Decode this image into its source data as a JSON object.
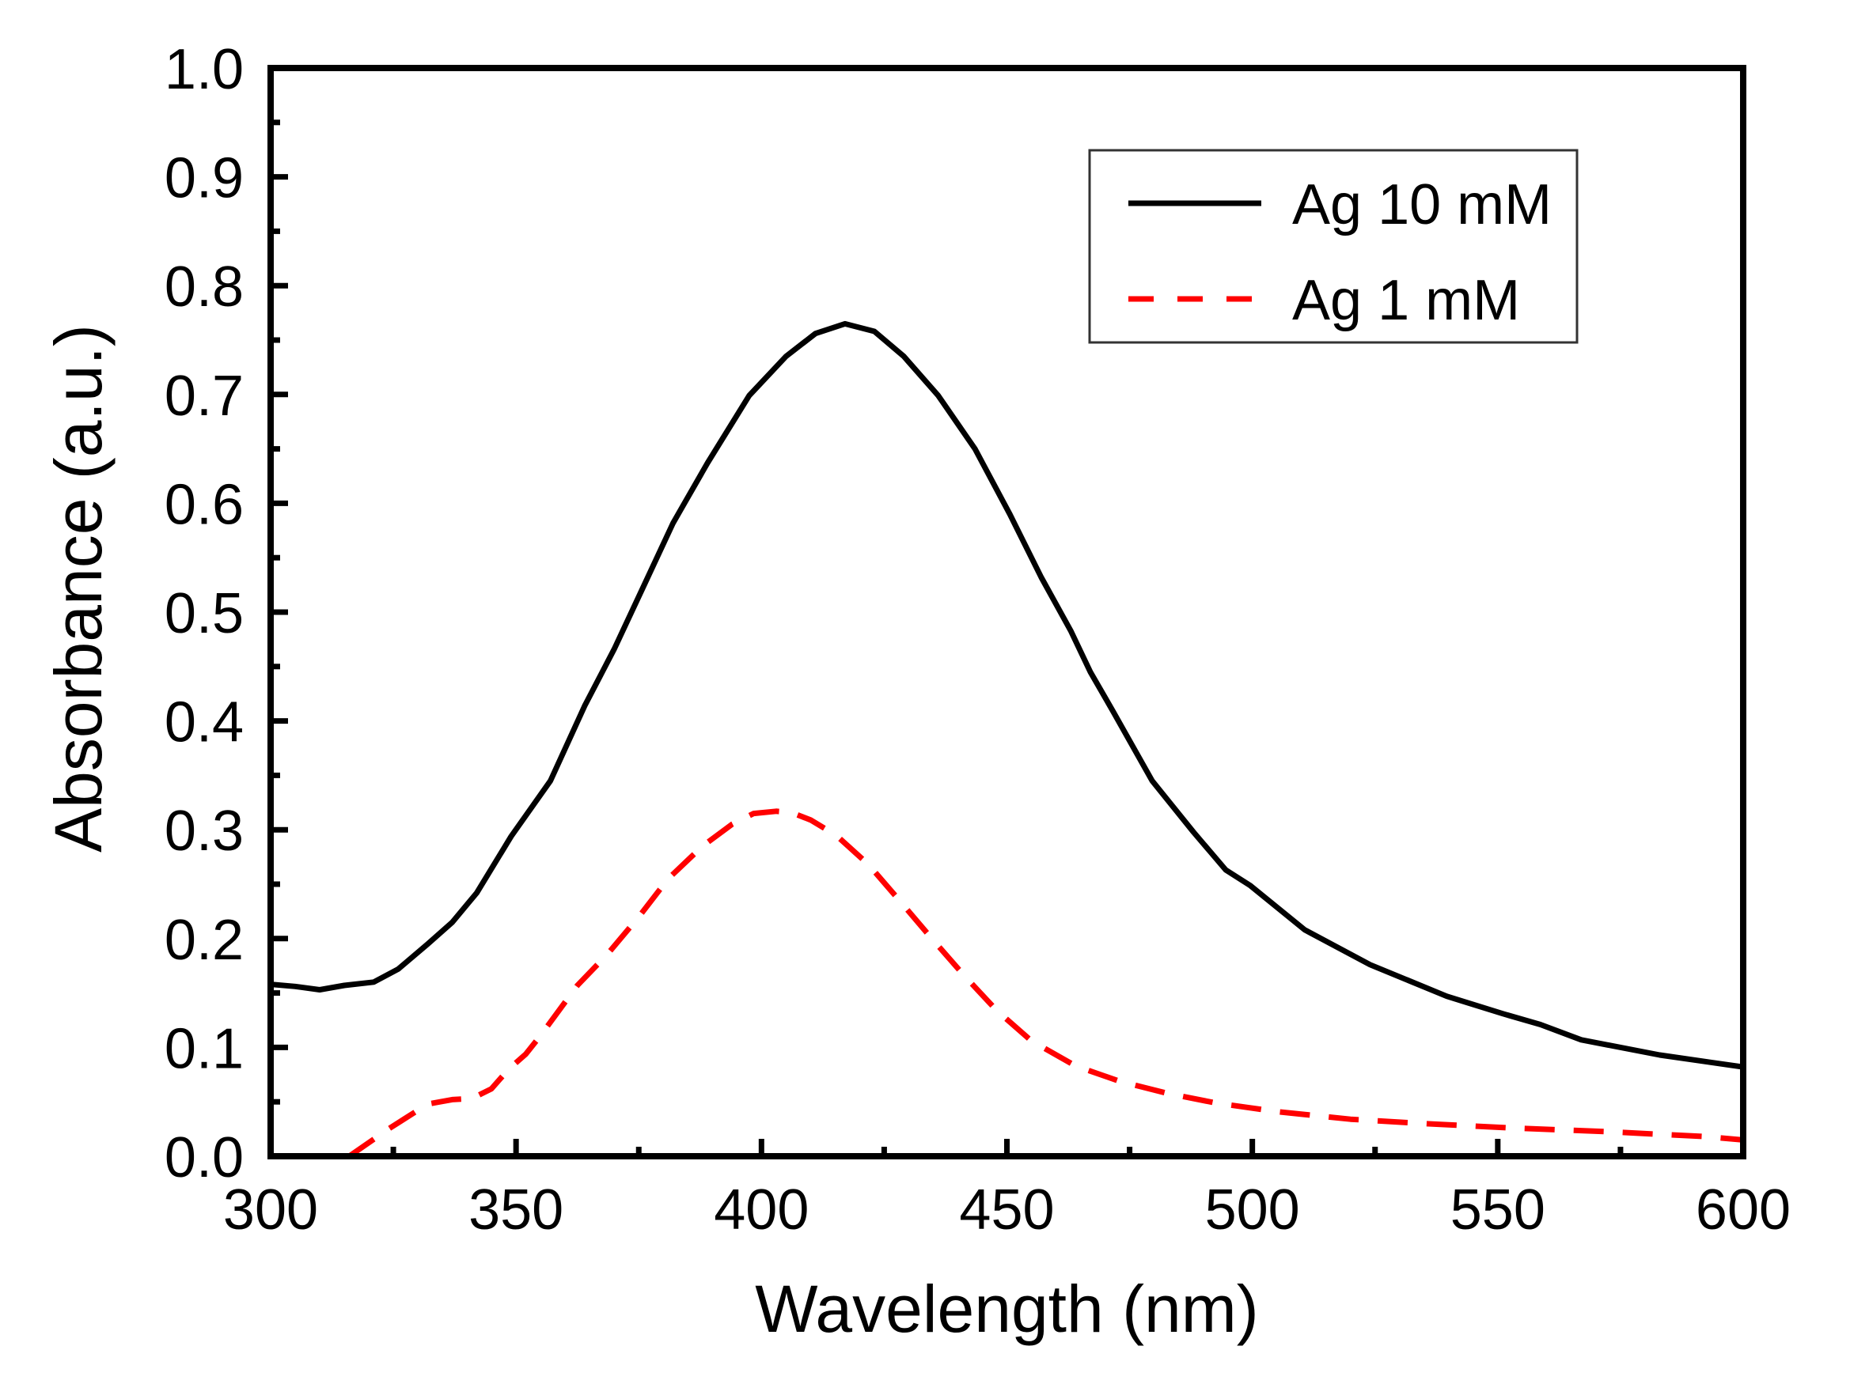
{
  "chart_data": {
    "type": "line",
    "title": "",
    "xlabel": "Wavelength (nm)",
    "ylabel": "Absorbance (a.u.)",
    "xlim": [
      300,
      600
    ],
    "ylim": [
      0.0,
      1.0
    ],
    "xticks": [
      300,
      350,
      400,
      450,
      500,
      550,
      600
    ],
    "xtick_labels": [
      "300",
      "350",
      "400",
      "450",
      "500",
      "550",
      "600"
    ],
    "x_minor_step": 25,
    "yticks": [
      0.0,
      0.1,
      0.2,
      0.3,
      0.4,
      0.5,
      0.6,
      0.7,
      0.8,
      0.9,
      1.0
    ],
    "ytick_labels": [
      "0.0",
      "0.1",
      "0.2",
      "0.3",
      "0.4",
      "0.5",
      "0.6",
      "0.7",
      "0.8",
      "0.9",
      "1.0"
    ],
    "y_minor_step": 0.05,
    "grid": false,
    "legend_position": "top-right",
    "series": [
      {
        "name": "Ag 10 mM",
        "color": "#000000",
        "style": "solid",
        "x": [
          300,
          305,
          310,
          315,
          321,
          326,
          332,
          337,
          342,
          349,
          357,
          364,
          370,
          376,
          382,
          389,
          397.5,
          405,
          411,
          417,
          423,
          429,
          436,
          443.5,
          450.6,
          457,
          463,
          467,
          471.6,
          479.6,
          488,
          494.6,
          499.5,
          510.7,
          524,
          539.6,
          551,
          558.7,
          567,
          583,
          600
        ],
        "y": [
          0.158,
          0.156,
          0.153,
          0.157,
          0.16,
          0.172,
          0.195,
          0.215,
          0.242,
          0.294,
          0.345,
          0.414,
          0.466,
          0.524,
          0.582,
          0.637,
          0.699,
          0.735,
          0.756,
          0.765,
          0.758,
          0.735,
          0.699,
          0.65,
          0.59,
          0.532,
          0.483,
          0.445,
          0.409,
          0.345,
          0.298,
          0.263,
          0.249,
          0.208,
          0.176,
          0.147,
          0.131,
          0.121,
          0.107,
          0.093,
          0.082
        ]
      },
      {
        "name": "Ag 1 mM",
        "color": "#ff0000",
        "style": "dashed",
        "x": [
          316,
          324,
          332,
          337,
          341,
          345,
          348.5,
          352,
          355,
          362.5,
          368.5,
          375,
          381,
          388,
          394,
          398.4,
          403,
          406,
          410,
          415.2,
          421.8,
          428.3,
          434.7,
          441.1,
          447.9,
          455,
          464,
          472.9,
          482.5,
          492.5,
          505,
          520,
          535,
          552.6,
          572.5,
          592.4,
          600
        ],
        "y": [
          0.0,
          0.025,
          0.048,
          0.052,
          0.053,
          0.062,
          0.08,
          0.094,
          0.111,
          0.157,
          0.185,
          0.22,
          0.255,
          0.285,
          0.305,
          0.315,
          0.317,
          0.316,
          0.309,
          0.295,
          0.268,
          0.234,
          0.2,
          0.167,
          0.134,
          0.106,
          0.083,
          0.069,
          0.058,
          0.049,
          0.041,
          0.034,
          0.03,
          0.026,
          0.0225,
          0.018,
          0.015
        ]
      }
    ]
  }
}
